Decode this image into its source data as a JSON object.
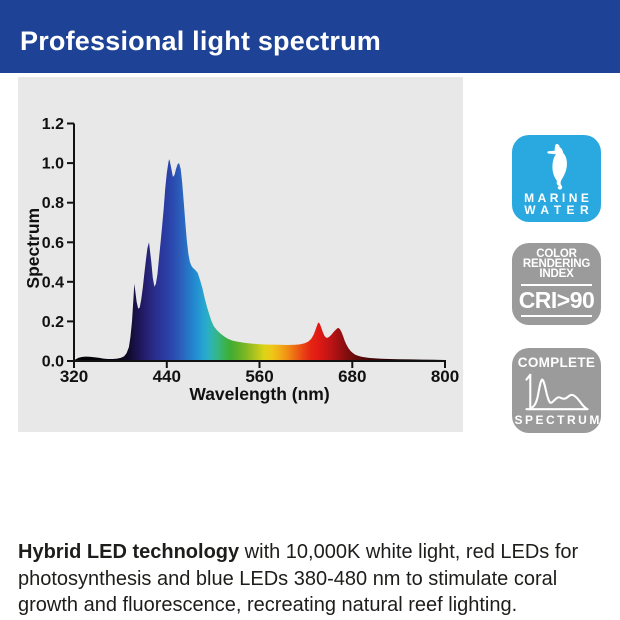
{
  "header": {
    "title": "Professional light spectrum",
    "bg_color": "#1e4296",
    "text_color": "#ffffff"
  },
  "chart_data": {
    "type": "area",
    "title": "",
    "xlabel": "Wavelength (nm)",
    "ylabel": "Spectrum",
    "xlim": [
      320,
      800
    ],
    "ylim": [
      0,
      1.2
    ],
    "x_ticks": [
      "320",
      "440",
      "560",
      "680",
      "800"
    ],
    "y_ticks": [
      "0.0",
      "0.2",
      "0.4",
      "0.6",
      "0.8",
      "1.0",
      "1.2"
    ],
    "grid": false,
    "legend": "none",
    "panel_bg": "#e8e8e8",
    "points": [
      [
        320,
        0.004
      ],
      [
        323,
        0.01
      ],
      [
        326,
        0.016
      ],
      [
        330,
        0.02
      ],
      [
        335,
        0.022
      ],
      [
        340,
        0.021
      ],
      [
        346,
        0.019
      ],
      [
        352,
        0.016
      ],
      [
        358,
        0.012
      ],
      [
        364,
        0.01
      ],
      [
        370,
        0.01
      ],
      [
        376,
        0.012
      ],
      [
        381,
        0.016
      ],
      [
        385,
        0.024
      ],
      [
        388,
        0.04
      ],
      [
        391,
        0.07
      ],
      [
        393,
        0.12
      ],
      [
        395,
        0.2
      ],
      [
        397,
        0.32
      ],
      [
        398,
        0.39
      ],
      [
        399,
        0.36
      ],
      [
        401,
        0.3
      ],
      [
        403,
        0.265
      ],
      [
        405,
        0.27
      ],
      [
        407,
        0.31
      ],
      [
        409,
        0.37
      ],
      [
        411,
        0.44
      ],
      [
        413,
        0.51
      ],
      [
        415,
        0.57
      ],
      [
        417,
        0.6
      ],
      [
        418,
        0.57
      ],
      [
        420,
        0.5
      ],
      [
        422,
        0.42
      ],
      [
        424,
        0.375
      ],
      [
        426,
        0.39
      ],
      [
        428,
        0.44
      ],
      [
        430,
        0.52
      ],
      [
        432,
        0.6
      ],
      [
        434,
        0.68
      ],
      [
        436,
        0.77
      ],
      [
        438,
        0.87
      ],
      [
        440,
        0.95
      ],
      [
        442,
        1.0
      ],
      [
        443,
        1.02
      ],
      [
        444,
        1.01
      ],
      [
        446,
        0.97
      ],
      [
        448,
        0.93
      ],
      [
        450,
        0.94
      ],
      [
        452,
        0.97
      ],
      [
        454,
        0.995
      ],
      [
        456,
        1.0
      ],
      [
        458,
        0.97
      ],
      [
        460,
        0.9
      ],
      [
        462,
        0.8
      ],
      [
        464,
        0.7
      ],
      [
        466,
        0.61
      ],
      [
        468,
        0.54
      ],
      [
        470,
        0.5
      ],
      [
        472,
        0.48
      ],
      [
        474,
        0.47
      ],
      [
        477,
        0.46
      ],
      [
        480,
        0.445
      ],
      [
        483,
        0.41
      ],
      [
        486,
        0.37
      ],
      [
        489,
        0.32
      ],
      [
        492,
        0.275
      ],
      [
        495,
        0.235
      ],
      [
        498,
        0.2
      ],
      [
        501,
        0.175
      ],
      [
        505,
        0.155
      ],
      [
        509,
        0.14
      ],
      [
        514,
        0.125
      ],
      [
        519,
        0.112
      ],
      [
        525,
        0.103
      ],
      [
        532,
        0.097
      ],
      [
        540,
        0.092
      ],
      [
        550,
        0.088
      ],
      [
        560,
        0.085
      ],
      [
        572,
        0.083
      ],
      [
        584,
        0.082
      ],
      [
        596,
        0.081
      ],
      [
        606,
        0.082
      ],
      [
        612,
        0.084
      ],
      [
        618,
        0.089
      ],
      [
        623,
        0.098
      ],
      [
        627,
        0.112
      ],
      [
        630,
        0.133
      ],
      [
        632,
        0.152
      ],
      [
        634,
        0.175
      ],
      [
        636,
        0.195
      ],
      [
        638,
        0.188
      ],
      [
        640,
        0.168
      ],
      [
        642,
        0.145
      ],
      [
        644,
        0.128
      ],
      [
        646,
        0.118
      ],
      [
        648,
        0.117
      ],
      [
        650,
        0.122
      ],
      [
        653,
        0.133
      ],
      [
        656,
        0.147
      ],
      [
        659,
        0.159
      ],
      [
        661,
        0.166
      ],
      [
        662,
        0.167
      ],
      [
        664,
        0.161
      ],
      [
        666,
        0.147
      ],
      [
        668,
        0.127
      ],
      [
        670,
        0.105
      ],
      [
        672,
        0.086
      ],
      [
        675,
        0.065
      ],
      [
        678,
        0.05
      ],
      [
        681,
        0.04
      ],
      [
        684,
        0.032
      ],
      [
        688,
        0.026
      ],
      [
        692,
        0.021
      ],
      [
        697,
        0.018
      ],
      [
        703,
        0.015
      ],
      [
        710,
        0.013
      ],
      [
        718,
        0.011
      ],
      [
        728,
        0.01
      ],
      [
        740,
        0.009
      ],
      [
        755,
        0.008
      ],
      [
        770,
        0.007
      ],
      [
        785,
        0.006
      ],
      [
        800,
        0.005
      ]
    ],
    "gradient": [
      [
        320,
        "#000000"
      ],
      [
        378,
        "#0a0512"
      ],
      [
        392,
        "#120b2e"
      ],
      [
        402,
        "#1c1452"
      ],
      [
        412,
        "#241e6e"
      ],
      [
        422,
        "#292b85"
      ],
      [
        432,
        "#2a369a"
      ],
      [
        442,
        "#2a41a8"
      ],
      [
        452,
        "#2b52b4"
      ],
      [
        462,
        "#2a68c0"
      ],
      [
        472,
        "#2380cc"
      ],
      [
        482,
        "#2497d2"
      ],
      [
        490,
        "#29aacd"
      ],
      [
        498,
        "#2fb4b0"
      ],
      [
        506,
        "#34b683"
      ],
      [
        514,
        "#38b355"
      ],
      [
        522,
        "#40ad34"
      ],
      [
        532,
        "#5cb02a"
      ],
      [
        544,
        "#85b923"
      ],
      [
        556,
        "#b5c61c"
      ],
      [
        566,
        "#dcd417"
      ],
      [
        576,
        "#eec817"
      ],
      [
        586,
        "#f2ae16"
      ],
      [
        596,
        "#f18f14"
      ],
      [
        606,
        "#ee6a14"
      ],
      [
        616,
        "#e94414"
      ],
      [
        626,
        "#e52613"
      ],
      [
        636,
        "#e01a14"
      ],
      [
        646,
        "#cb1615"
      ],
      [
        656,
        "#b31214"
      ],
      [
        666,
        "#960f10"
      ],
      [
        676,
        "#7b0c0d"
      ],
      [
        688,
        "#5f0a0a"
      ],
      [
        702,
        "#470707"
      ],
      [
        720,
        "#300505"
      ],
      [
        745,
        "#1c0303"
      ],
      [
        770,
        "#0e0101"
      ],
      [
        800,
        "#000000"
      ]
    ]
  },
  "badges": {
    "marine": {
      "bg": "#2aa9e0",
      "icon": "seahorse",
      "line1": "MARINE",
      "line2": "WATER"
    },
    "cri": {
      "bg": "#9b9b9b",
      "line1": "COLOR",
      "line2": "RENDERING",
      "line3": "INDEX",
      "value": "CRI>90"
    },
    "complete": {
      "bg": "#9b9b9b",
      "top": "COMPLETE",
      "icon": "spectrum-sketch",
      "bottom": "SPECTRUM"
    }
  },
  "body": {
    "bold_lead": "Hybrid LED technology",
    "rest": " with 10,000K white light, red LEDs for photosynthesis and blue LEDs 380-480 nm to stimulate coral growth and fluorescence, recreating natural reef lighting."
  }
}
